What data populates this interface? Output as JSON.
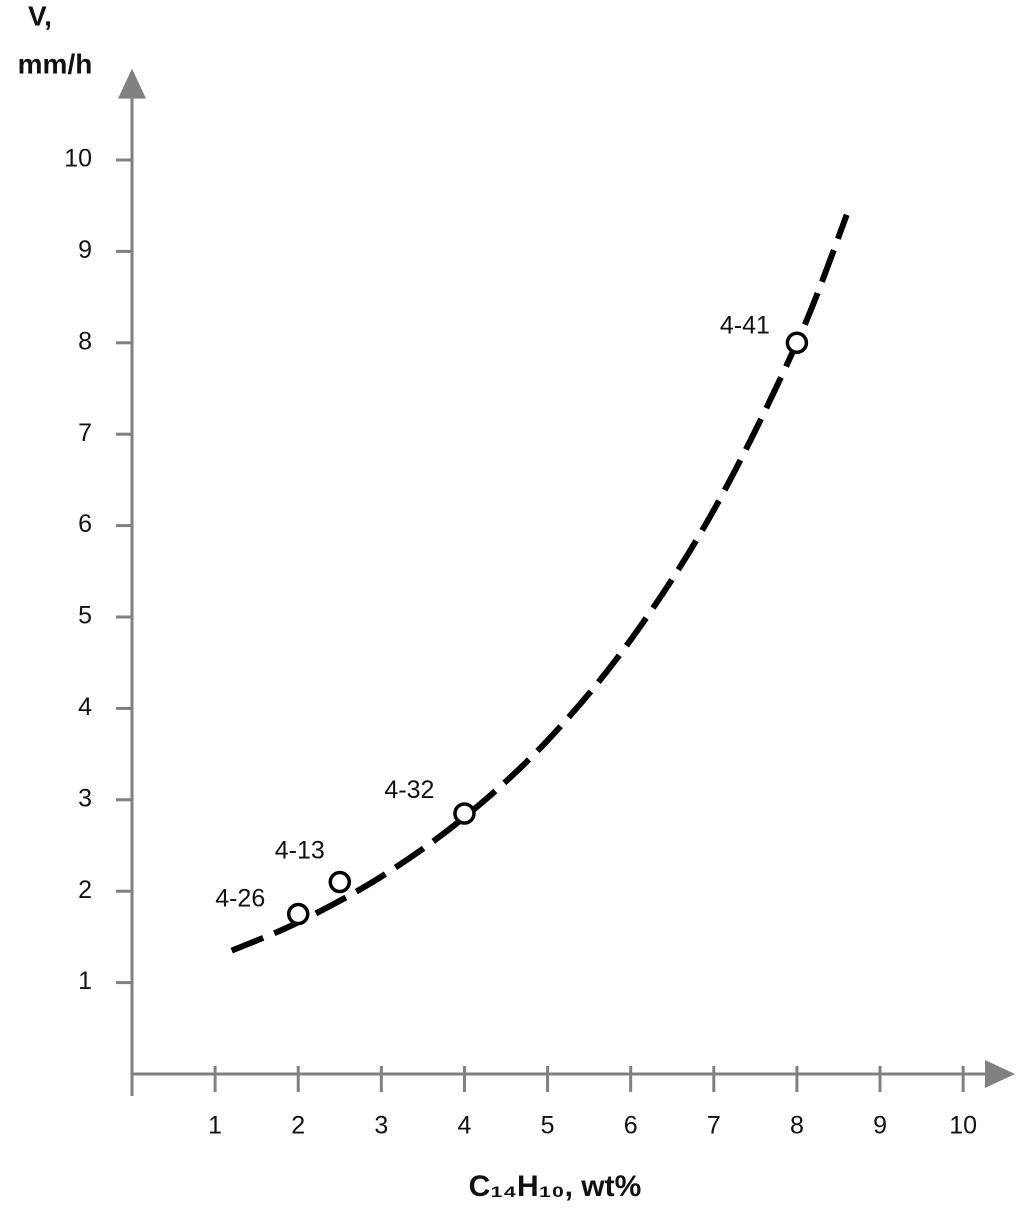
{
  "chart_data": {
    "type": "scatter",
    "ylabel": [
      "V,",
      "mm/h"
    ],
    "xlabel": "C₁₄H₁₀, wt%",
    "xlim": [
      0,
      10.6
    ],
    "ylim": [
      0,
      11
    ],
    "xticks": [
      1,
      2,
      3,
      4,
      5,
      6,
      7,
      8,
      9,
      10
    ],
    "yticks": [
      1,
      2,
      3,
      4,
      5,
      6,
      7,
      8,
      9,
      10
    ],
    "axis_color": "#808080",
    "x": [
      2,
      2.5,
      4,
      8
    ],
    "values": [
      1.75,
      2.1,
      2.85,
      8
    ],
    "point_labels": [
      "4-26",
      "4-13",
      "4-32",
      "4-41"
    ],
    "marker_color": "#000000",
    "fit": {
      "x": [
        1.2,
        2,
        3,
        4,
        5,
        6,
        7,
        8,
        8.6
      ],
      "values": [
        1.35,
        1.66,
        2.16,
        2.81,
        3.65,
        4.75,
        6.17,
        8.0,
        9.4
      ],
      "color": "#000000",
      "style": "dashed"
    }
  }
}
